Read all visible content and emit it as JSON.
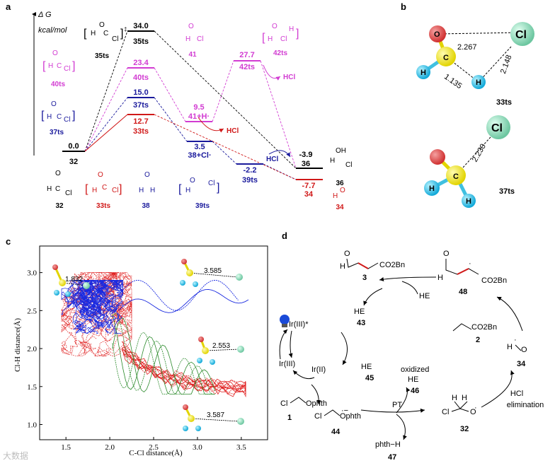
{
  "panels": {
    "a": "a",
    "b": "b",
    "c": "c",
    "d": "d"
  },
  "panel_a": {
    "axis_title": "Δ G",
    "axis_unit": "kcal/mol",
    "levels": [
      {
        "value": "0.0",
        "label": "32",
        "color": "#000000"
      },
      {
        "value": "34.0",
        "label": "35ts",
        "color": "#000000"
      },
      {
        "value": "23.4",
        "label": "40ts",
        "color": "#d23cd2"
      },
      {
        "value": "15.0",
        "label": "37ts",
        "color": "#1a1a9c"
      },
      {
        "value": "12.7",
        "label": "33ts",
        "color": "#d01818"
      },
      {
        "value": "9.5",
        "label": "41+H·",
        "color": "#d23cd2"
      },
      {
        "value": "27.7",
        "label": "42ts",
        "color": "#d23cd2"
      },
      {
        "value": "3.5",
        "label": "38+Cl·",
        "color": "#1a1a9c"
      },
      {
        "value": "-2.2",
        "label": "39ts",
        "color": "#1a1a9c"
      },
      {
        "value": "-3.9",
        "label": "36",
        "color": "#000000"
      },
      {
        "value": "-7.7",
        "label": "34",
        "color": "#d01818"
      }
    ],
    "hcl_labels": {
      "magenta": "HCl",
      "red": "HCl",
      "blue": "HCl"
    },
    "structure_labels": {
      "s35ts": "35ts",
      "s41": "41",
      "s42ts": "42ts",
      "s40ts": "40ts",
      "s37ts": "37ts",
      "s32": "32",
      "s33ts": "33ts",
      "s38": "38",
      "s39ts": "39ts",
      "s34": "34",
      "s36": "36"
    }
  },
  "panel_b": {
    "top": {
      "label": "33ts",
      "d1": "2.267",
      "d2": "2.148",
      "d3": "1.135"
    },
    "bottom": {
      "label": "37ts",
      "d1": "2.230"
    }
  },
  "panel_c": {
    "xlabel": "C-Cl distance(Å)",
    "ylabel": "Cl-H distance(Å)",
    "xticks": [
      "1.5",
      "2.0",
      "2.5",
      "3.0",
      "3.5"
    ],
    "yticks": [
      "1.0",
      "1.5",
      "2.0",
      "2.5",
      "3.0"
    ],
    "annotations": [
      "1.832",
      "3.585",
      "2.553",
      "3.587"
    ]
  },
  "panel_d": {
    "species": {
      "s3": "3",
      "s48": "48",
      "s43": "43",
      "s2": "2",
      "s34": "34",
      "s45": "45",
      "s46": "46",
      "s32": "32",
      "s47": "47",
      "s44": "44",
      "s1": "1"
    },
    "text": {
      "he": "HE",
      "he_radical": "HE",
      "he_plus": "HE",
      "ir3star": "Ir(III)*",
      "ir2": "Ir(II)",
      "ir3": "Ir(III)",
      "oxidized": "oxidized",
      "oxidized_he": "HE",
      "pt": "PT",
      "hcl_elim1": "HCl",
      "hcl_elim2": "elimination",
      "phth_h": "phth−H",
      "co2bn": "CO2Bn",
      "ophth": "Ophth"
    }
  },
  "watermark": "大数据"
}
